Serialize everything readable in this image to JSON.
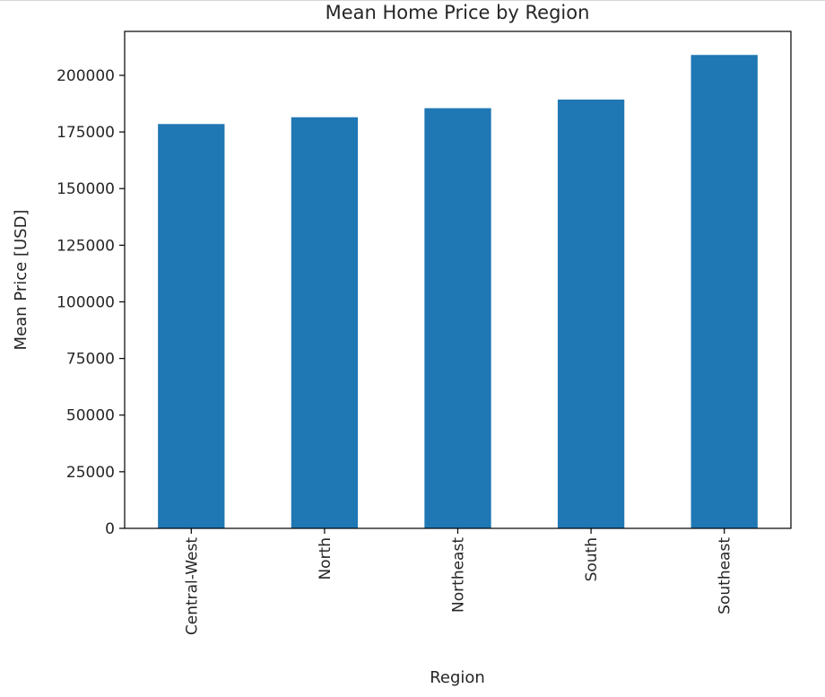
{
  "chart_data": {
    "type": "bar",
    "title": "Mean Home Price by Region",
    "xlabel": "Region",
    "ylabel": "Mean Price [USD]",
    "categories": [
      "Central-West",
      "North",
      "Northeast",
      "South",
      "Southeast"
    ],
    "values": [
      178500,
      181500,
      185500,
      189300,
      209000
    ],
    "ylim": [
      0,
      219400
    ],
    "yticks": [
      0,
      25000,
      50000,
      75000,
      100000,
      125000,
      150000,
      175000,
      200000
    ],
    "bar_color": "#1f77b4",
    "grid": false,
    "legend": "none"
  }
}
